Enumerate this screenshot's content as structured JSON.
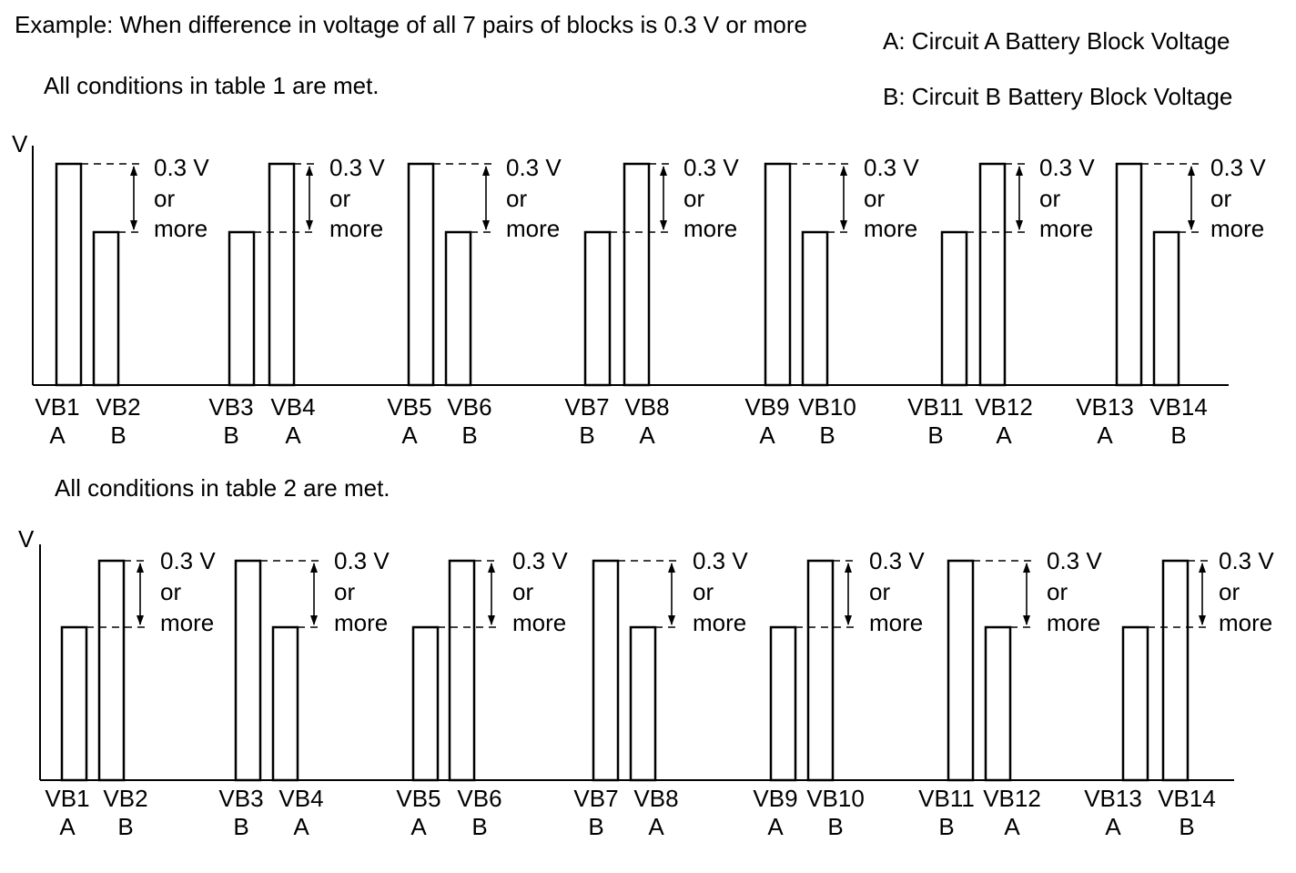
{
  "header": {
    "example_text": "Example: When difference in voltage of all 7 pairs of blocks is 0.3 V or more",
    "legend_a": "A: Circuit A Battery Block Voltage",
    "legend_b": "B: Circuit B Battery Block Voltage"
  },
  "panels": [
    {
      "caption": "All conditions in table 1 are met.",
      "axis_label": "V",
      "annotation": [
        "0.3 V",
        "or",
        "more"
      ],
      "pairs": [
        [
          {
            "name": "VB1",
            "circuit": "A"
          },
          {
            "name": "VB2",
            "circuit": "B"
          }
        ],
        [
          {
            "name": "VB3",
            "circuit": "B"
          },
          {
            "name": "VB4",
            "circuit": "A"
          }
        ],
        [
          {
            "name": "VB5",
            "circuit": "A"
          },
          {
            "name": "VB6",
            "circuit": "B"
          }
        ],
        [
          {
            "name": "VB7",
            "circuit": "B"
          },
          {
            "name": "VB8",
            "circuit": "A"
          }
        ],
        [
          {
            "name": "VB9",
            "circuit": "A"
          },
          {
            "name": "VB10",
            "circuit": "B"
          }
        ],
        [
          {
            "name": "VB11",
            "circuit": "B"
          },
          {
            "name": "VB12",
            "circuit": "A"
          }
        ],
        [
          {
            "name": "VB13",
            "circuit": "A"
          },
          {
            "name": "VB14",
            "circuit": "B"
          }
        ]
      ]
    },
    {
      "caption": "All conditions in table 2 are met.",
      "axis_label": "V",
      "annotation": [
        "0.3 V",
        "or",
        "more"
      ],
      "pairs": [
        [
          {
            "name": "VB1",
            "circuit": "A"
          },
          {
            "name": "VB2",
            "circuit": "B"
          }
        ],
        [
          {
            "name": "VB3",
            "circuit": "B"
          },
          {
            "name": "VB4",
            "circuit": "A"
          }
        ],
        [
          {
            "name": "VB5",
            "circuit": "A"
          },
          {
            "name": "VB6",
            "circuit": "B"
          }
        ],
        [
          {
            "name": "VB7",
            "circuit": "B"
          },
          {
            "name": "VB8",
            "circuit": "A"
          }
        ],
        [
          {
            "name": "VB9",
            "circuit": "A"
          },
          {
            "name": "VB10",
            "circuit": "B"
          }
        ],
        [
          {
            "name": "VB11",
            "circuit": "B"
          },
          {
            "name": "VB12",
            "circuit": "A"
          }
        ],
        [
          {
            "name": "VB13",
            "circuit": "A"
          },
          {
            "name": "VB14",
            "circuit": "B"
          }
        ]
      ]
    }
  ]
}
